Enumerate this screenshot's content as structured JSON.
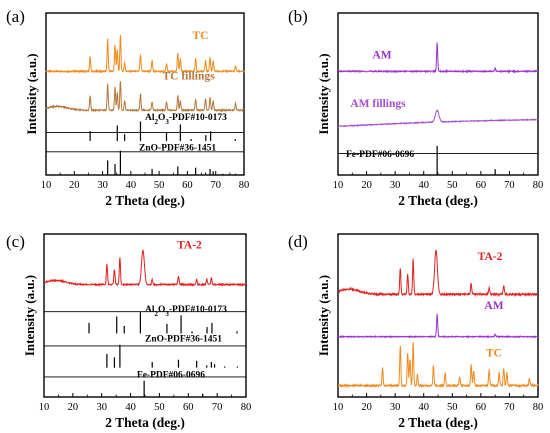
{
  "chart_data": [
    {
      "type": "line",
      "panel_label": "(a)",
      "xlabel": "2 Theta (deg.)",
      "ylabel": "Intensity (a.u.)",
      "xlim": [
        10,
        80
      ],
      "xticks": [
        "10",
        "20",
        "30",
        "40",
        "50",
        "60",
        "70",
        "80"
      ],
      "series": [
        {
          "name": "TC",
          "color": "#f08a1c",
          "peaks": [
            [
              25.6,
              0.4
            ],
            [
              31.8,
              0.9
            ],
            [
              34.4,
              0.75
            ],
            [
              35.2,
              0.6
            ],
            [
              36.3,
              1.0
            ],
            [
              37.8,
              0.25
            ],
            [
              43.4,
              0.45
            ],
            [
              47.5,
              0.3
            ],
            [
              52.6,
              0.2
            ],
            [
              56.6,
              0.5
            ],
            [
              57.5,
              0.35
            ],
            [
              62.9,
              0.35
            ],
            [
              66.4,
              0.3
            ],
            [
              68.0,
              0.4
            ],
            [
              69.1,
              0.3
            ],
            [
              77.0,
              0.15
            ]
          ]
        },
        {
          "name": "TC fillings",
          "color": "#b3773a",
          "peaks": [
            [
              25.6,
              0.45
            ],
            [
              31.8,
              0.8
            ],
            [
              34.4,
              0.7
            ],
            [
              35.2,
              0.55
            ],
            [
              36.3,
              0.9
            ],
            [
              37.8,
              0.3
            ],
            [
              43.4,
              0.5
            ],
            [
              47.5,
              0.25
            ],
            [
              52.6,
              0.25
            ],
            [
              56.6,
              0.45
            ],
            [
              57.5,
              0.3
            ],
            [
              62.9,
              0.35
            ],
            [
              66.4,
              0.35
            ],
            [
              68.0,
              0.4
            ],
            [
              69.1,
              0.3
            ],
            [
              77.0,
              0.2
            ]
          ]
        }
      ],
      "references": [
        {
          "name": "Al2O3-PDF#10-0173",
          "color": "#000000",
          "sticks": [
            [
              25.6,
              0.5
            ],
            [
              35.2,
              0.8
            ],
            [
              37.8,
              0.35
            ],
            [
              43.4,
              1.0
            ],
            [
              52.6,
              0.45
            ],
            [
              57.5,
              0.85
            ],
            [
              61.3,
              0.1
            ],
            [
              66.5,
              0.3
            ],
            [
              68.2,
              0.5
            ],
            [
              76.9,
              0.1
            ]
          ]
        },
        {
          "name": "ZnO-PDF#36-1451",
          "color": "#000000",
          "sticks": [
            [
              31.8,
              0.6
            ],
            [
              34.4,
              0.45
            ],
            [
              36.3,
              1.0
            ],
            [
              47.5,
              0.25
            ],
            [
              56.6,
              0.35
            ],
            [
              62.9,
              0.3
            ],
            [
              66.4,
              0.1
            ],
            [
              68.0,
              0.25
            ],
            [
              69.1,
              0.15
            ],
            [
              72.6,
              0.05
            ],
            [
              77.0,
              0.05
            ]
          ]
        }
      ]
    },
    {
      "type": "line",
      "panel_label": "(b)",
      "xlabel": "2 Theta (deg.)",
      "ylabel": "Intensity (a.u.)",
      "xlim": [
        10,
        80
      ],
      "xticks": [
        "10",
        "20",
        "30",
        "40",
        "50",
        "60",
        "70",
        "80"
      ],
      "series": [
        {
          "name": "AM",
          "color": "#9933cc",
          "peaks": [
            [
              44.7,
              1.0
            ],
            [
              65.0,
              0.1
            ]
          ]
        },
        {
          "name": "AM fillings",
          "color": "#a64dcc",
          "peaks": [
            [
              44.7,
              0.6
            ]
          ]
        }
      ],
      "references": [
        {
          "name": "Fe-PDF#06-0696",
          "color": "#000000",
          "sticks": [
            [
              44.7,
              1.0
            ],
            [
              65.0,
              0.2
            ]
          ]
        }
      ]
    },
    {
      "type": "line",
      "panel_label": "(c)",
      "xlabel": "2 Theta (deg.)",
      "ylabel": "Intensity (a.u.)",
      "xlim": [
        10,
        80
      ],
      "xticks": [
        "10",
        "20",
        "30",
        "40",
        "50",
        "60",
        "70",
        "80"
      ],
      "series": [
        {
          "name": "TA-2",
          "color": "#e02020",
          "peaks": [
            [
              31.8,
              0.6
            ],
            [
              34.4,
              0.45
            ],
            [
              36.3,
              0.8
            ],
            [
              44.3,
              1.0
            ],
            [
              47.5,
              0.15
            ],
            [
              56.6,
              0.25
            ],
            [
              62.9,
              0.15
            ],
            [
              66.4,
              0.15
            ],
            [
              68.0,
              0.2
            ]
          ]
        }
      ],
      "references": [
        {
          "name": "Al2O3-PDF#10-0173",
          "color": "#000000",
          "sticks": [
            [
              25.6,
              0.5
            ],
            [
              35.2,
              0.8
            ],
            [
              37.8,
              0.35
            ],
            [
              43.4,
              1.0
            ],
            [
              52.6,
              0.45
            ],
            [
              57.5,
              0.85
            ],
            [
              61.3,
              0.1
            ],
            [
              66.5,
              0.3
            ],
            [
              68.2,
              0.5
            ],
            [
              76.9,
              0.1
            ]
          ]
        },
        {
          "name": "ZnO-PDF#36-1451",
          "color": "#000000",
          "sticks": [
            [
              31.8,
              0.6
            ],
            [
              34.4,
              0.45
            ],
            [
              36.3,
              1.0
            ],
            [
              47.5,
              0.25
            ],
            [
              56.6,
              0.35
            ],
            [
              62.9,
              0.3
            ],
            [
              66.4,
              0.1
            ],
            [
              68.0,
              0.25
            ],
            [
              69.1,
              0.15
            ],
            [
              72.6,
              0.05
            ],
            [
              77.0,
              0.05
            ]
          ]
        },
        {
          "name": "Fe-PDF#06-0696",
          "color": "#000000",
          "sticks": [
            [
              44.7,
              1.0
            ],
            [
              65.0,
              0.2
            ]
          ]
        }
      ]
    },
    {
      "type": "line",
      "panel_label": "(d)",
      "xlabel": "2 Theta (deg.)",
      "ylabel": "Intensity (a.u.)",
      "xlim": [
        10,
        80
      ],
      "xticks": [
        "10",
        "20",
        "30",
        "40",
        "50",
        "60",
        "70",
        "80"
      ],
      "series": [
        {
          "name": "TA-2",
          "color": "#e02020",
          "peaks": [
            [
              31.8,
              0.6
            ],
            [
              34.4,
              0.45
            ],
            [
              36.3,
              0.8
            ],
            [
              44.3,
              1.0
            ],
            [
              56.6,
              0.25
            ],
            [
              62.9,
              0.15
            ],
            [
              68.0,
              0.2
            ]
          ]
        },
        {
          "name": "AM",
          "color": "#9933cc",
          "peaks": [
            [
              44.7,
              1.0
            ],
            [
              65.0,
              0.1
            ]
          ]
        },
        {
          "name": "TC",
          "color": "#f08a1c",
          "peaks": [
            [
              25.6,
              0.4
            ],
            [
              31.8,
              0.9
            ],
            [
              34.4,
              0.75
            ],
            [
              35.2,
              0.6
            ],
            [
              36.3,
              1.0
            ],
            [
              37.8,
              0.25
            ],
            [
              43.4,
              0.45
            ],
            [
              47.5,
              0.3
            ],
            [
              52.6,
              0.2
            ],
            [
              56.6,
              0.5
            ],
            [
              57.5,
              0.35
            ],
            [
              62.9,
              0.35
            ],
            [
              66.4,
              0.3
            ],
            [
              68.0,
              0.4
            ],
            [
              69.1,
              0.3
            ],
            [
              77.0,
              0.15
            ]
          ]
        }
      ],
      "references": []
    }
  ]
}
